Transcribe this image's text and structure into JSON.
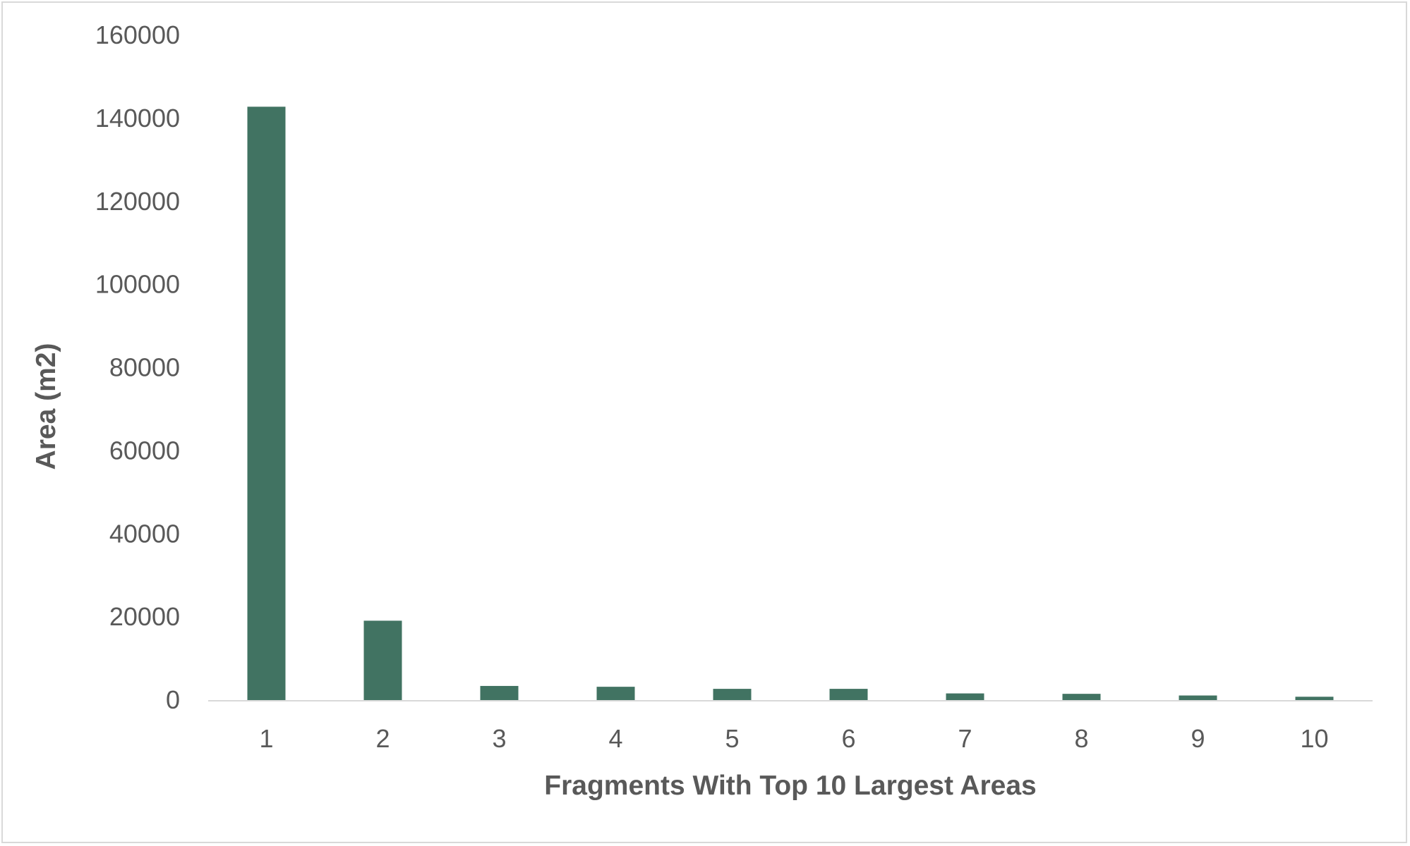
{
  "chart_data": {
    "type": "bar",
    "title": "",
    "xlabel": "Fragments With Top 10 Largest Areas",
    "ylabel": "Area (m2)",
    "categories": [
      "1",
      "2",
      "3",
      "4",
      "5",
      "6",
      "7",
      "8",
      "9",
      "10"
    ],
    "values": [
      142800,
      19100,
      3400,
      3200,
      2700,
      2700,
      1600,
      1500,
      1100,
      800
    ],
    "ylim": [
      0,
      160000
    ],
    "yticks": [
      "0",
      "20000",
      "40000",
      "60000",
      "80000",
      "100000",
      "120000",
      "140000",
      "160000"
    ],
    "grid": false,
    "legend": "none",
    "bar_color": "#417362",
    "axis_color": "#d9d9d9"
  }
}
